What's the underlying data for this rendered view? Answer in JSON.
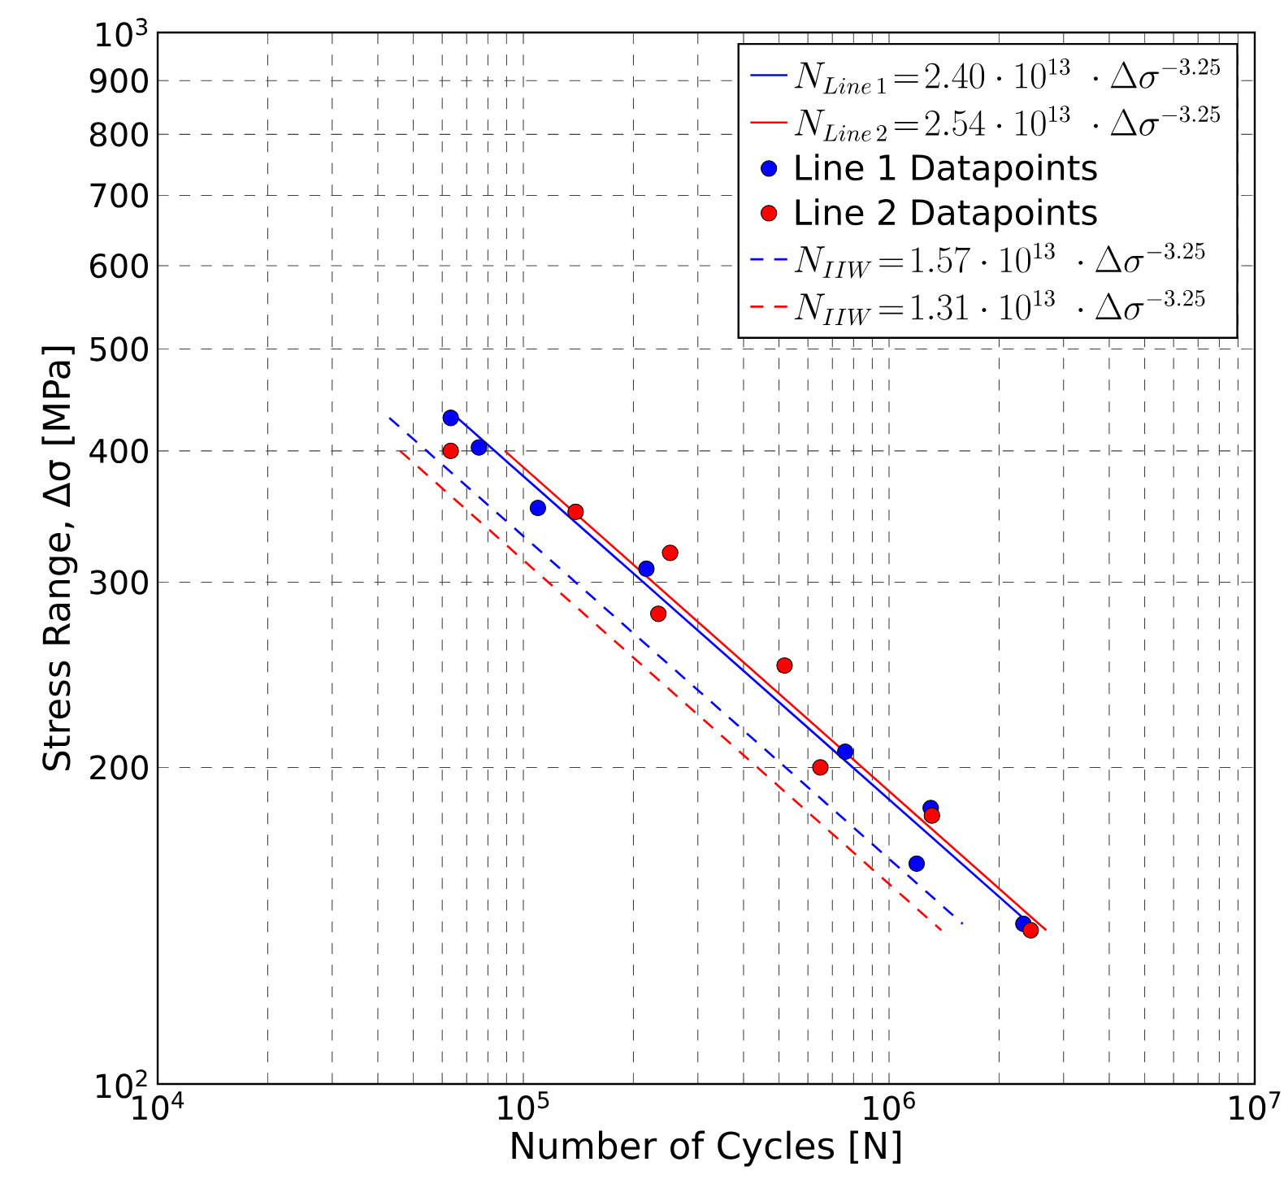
{
  "chart_data": {
    "type": "scatter",
    "xlabel": "Number of Cycles [N]",
    "ylabel": "Stress Range, Δσ [MPa]",
    "log": "xy",
    "xlim": [
      10000,
      10000000
    ],
    "ylim": [
      100,
      1000
    ],
    "xticks": [
      {
        "value": 10000,
        "label": "10$^{4}$"
      },
      {
        "value": 20000,
        "label": null
      },
      {
        "value": 30000,
        "label": null
      },
      {
        "value": 40000,
        "label": null
      },
      {
        "value": 50000,
        "label": null
      },
      {
        "value": 60000,
        "label": null
      },
      {
        "value": 70000,
        "label": null
      },
      {
        "value": 80000,
        "label": null
      },
      {
        "value": 90000,
        "label": null
      },
      {
        "value": 100000,
        "label": "10$^{5}$"
      },
      {
        "value": 200000,
        "label": null
      },
      {
        "value": 300000,
        "label": null
      },
      {
        "value": 400000,
        "label": null
      },
      {
        "value": 500000,
        "label": null
      },
      {
        "value": 600000,
        "label": null
      },
      {
        "value": 700000,
        "label": null
      },
      {
        "value": 800000,
        "label": null
      },
      {
        "value": 900000,
        "label": null
      },
      {
        "value": 1000000,
        "label": "10$^{6}$"
      },
      {
        "value": 2000000,
        "label": null
      },
      {
        "value": 3000000,
        "label": null
      },
      {
        "value": 4000000,
        "label": null
      },
      {
        "value": 5000000,
        "label": null
      },
      {
        "value": 6000000,
        "label": null
      },
      {
        "value": 7000000,
        "label": null
      },
      {
        "value": 8000000,
        "label": null
      },
      {
        "value": 9000000,
        "label": null
      },
      {
        "value": 10000000,
        "label": "10$^{7}$"
      }
    ],
    "yticks": [
      {
        "value": 100,
        "label": "10$^{2}$"
      },
      200,
      300,
      400,
      500,
      600,
      700,
      800,
      900,
      {
        "value": 1000,
        "label": "10$^{3}$"
      }
    ],
    "grid": true,
    "legend": "top right",
    "series": [
      {
        "name": "N_{Line\\,1}\\!=\\!2.40\\cdot 10^{13}\\;\\cdot\\Delta\\sigma^{-3.25}",
        "type": "line",
        "line_style": "solid",
        "color": "#0000ff",
        "x": [
          66000,
          2540000
        ],
        "values": [
          430,
          140
        ]
      },
      {
        "name": "N_{Line\\,2}\\!=\\!2.54\\cdot 10^{13}\\;\\cdot\\Delta\\sigma^{-3.25}",
        "type": "line",
        "line_style": "solid",
        "color": "#ff0000",
        "x": [
          89000,
          2690000
        ],
        "values": [
          400,
          140
        ]
      },
      {
        "name": "Line 1 Datapoints",
        "marker": "circle",
        "color": "#0000ff",
        "x": [
          63300,
          75600,
          109600,
          217000,
          759000,
          1300000,
          1190000,
          2330000
        ],
        "values": [
          430,
          403,
          353,
          309,
          207,
          183,
          162,
          142
        ]
      },
      {
        "name": "Line 2 Datapoints",
        "marker": "circle",
        "color": "#ff0000",
        "x": [
          63300,
          139000,
          252000,
          234000,
          518000,
          649000,
          1310000,
          2440000
        ],
        "values": [
          400,
          350,
          320,
          280,
          250,
          200,
          180,
          140
        ]
      },
      {
        "name": "N_{IIW}\\!=\\!1.57\\cdot 10^{13}\\;\\cdot\\Delta\\sigma^{-3.25}",
        "type": "line",
        "line_style": "dashed",
        "color": "#0000ff",
        "x": [
          43000,
          1590000
        ],
        "values": [
          430,
          142
        ]
      },
      {
        "name": "N_{IIW}\\!=\\!1.31\\cdot 10^{13}\\;\\cdot\\Delta\\sigma^{-3.25}",
        "type": "line",
        "line_style": "dashed",
        "color": "#ff0000",
        "x": [
          46000,
          1390000
        ],
        "values": [
          400,
          140
        ]
      }
    ]
  }
}
